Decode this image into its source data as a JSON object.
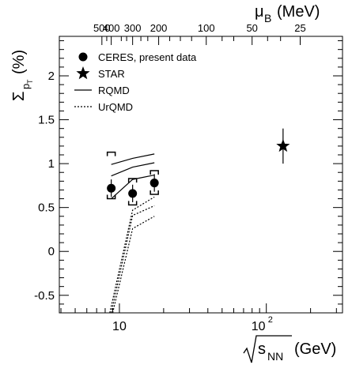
{
  "chart_data": {
    "type": "scatter",
    "x_scale": "log",
    "xlim": [
      3.9,
      330
    ],
    "ylim": [
      -0.7,
      2.45
    ],
    "xlabel_main": "s",
    "xlabel_sub": "NN",
    "xlabel_unit": "(GeV)",
    "ylabel_main": "Σ",
    "ylabel_sub1": "p",
    "ylabel_sub2": "T",
    "ylabel_unit": "(%)",
    "x_ticks": [
      {
        "value": 10,
        "label": "10"
      },
      {
        "value": 100,
        "label": "10",
        "exp": "2"
      }
    ],
    "y_ticks": [
      -0.5,
      0,
      0.5,
      1,
      1.5,
      2
    ],
    "y_tick_labels": [
      "-0.5",
      "0",
      "0.5",
      "1",
      "1.5",
      "2"
    ],
    "top_axis": {
      "label_main": "μ",
      "label_sub": "B",
      "label_unit": "(MeV)",
      "ticks": [
        {
          "label": "500",
          "sqrt_s": 7.6
        },
        {
          "label": "400",
          "sqrt_s": 8.8
        },
        {
          "label": "300",
          "sqrt_s": 12.3
        },
        {
          "label": "200",
          "sqrt_s": 18.5
        },
        {
          "label": "100",
          "sqrt_s": 39
        },
        {
          "label": "50",
          "sqrt_s": 80
        },
        {
          "label": "25",
          "sqrt_s": 170
        }
      ]
    },
    "legend": {
      "position": "top-left",
      "entries": [
        {
          "label": "CERES, present data",
          "marker": "filled-circle"
        },
        {
          "label": "STAR",
          "marker": "star"
        },
        {
          "label": "RQMD",
          "line": "solid"
        },
        {
          "label": "UrQMD",
          "line": "dotted"
        }
      ]
    },
    "series": [
      {
        "name": "CERES, present data",
        "marker": "filled-circle",
        "points": [
          {
            "x": 8.8,
            "y": 0.72,
            "err": 0.1,
            "sys_low": 0.6,
            "sys_high": 1.13
          },
          {
            "x": 12.3,
            "y": 0.66,
            "err": 0.1,
            "sys_low": 0.53,
            "sys_high": 0.83
          },
          {
            "x": 17.3,
            "y": 0.78,
            "err": 0.1,
            "sys_low": 0.65,
            "sys_high": 0.92
          }
        ]
      },
      {
        "name": "STAR",
        "marker": "star",
        "points": [
          {
            "x": 130,
            "y": 1.2,
            "err": 0.2
          }
        ]
      },
      {
        "name": "RQMD",
        "line": "solid",
        "band": [
          {
            "x": [
              8.8,
              12.3,
              17.3
            ],
            "y": [
              0.99,
              1.06,
              1.11
            ]
          },
          {
            "x": [
              8.8,
              12.3,
              17.3
            ],
            "y": [
              0.86,
              0.96,
              1.01
            ]
          },
          {
            "x": [
              8.8,
              12.3,
              17.3
            ],
            "y": [
              0.6,
              0.82,
              0.87
            ]
          }
        ]
      },
      {
        "name": "UrQMD",
        "line": "dotted",
        "band": [
          {
            "x": [
              8.6,
              12.3,
              17.3
            ],
            "y": [
              -0.7,
              0.47,
              0.62
            ]
          },
          {
            "x": [
              8.8,
              12.3,
              17.3
            ],
            "y": [
              -0.7,
              0.41,
              0.52
            ]
          },
          {
            "x": [
              9.0,
              12.3,
              17.3
            ],
            "y": [
              -0.7,
              0.26,
              0.4
            ]
          }
        ]
      }
    ],
    "colors": {
      "axis": "#000000",
      "markers": "#000000",
      "background": "#ffffff"
    }
  }
}
